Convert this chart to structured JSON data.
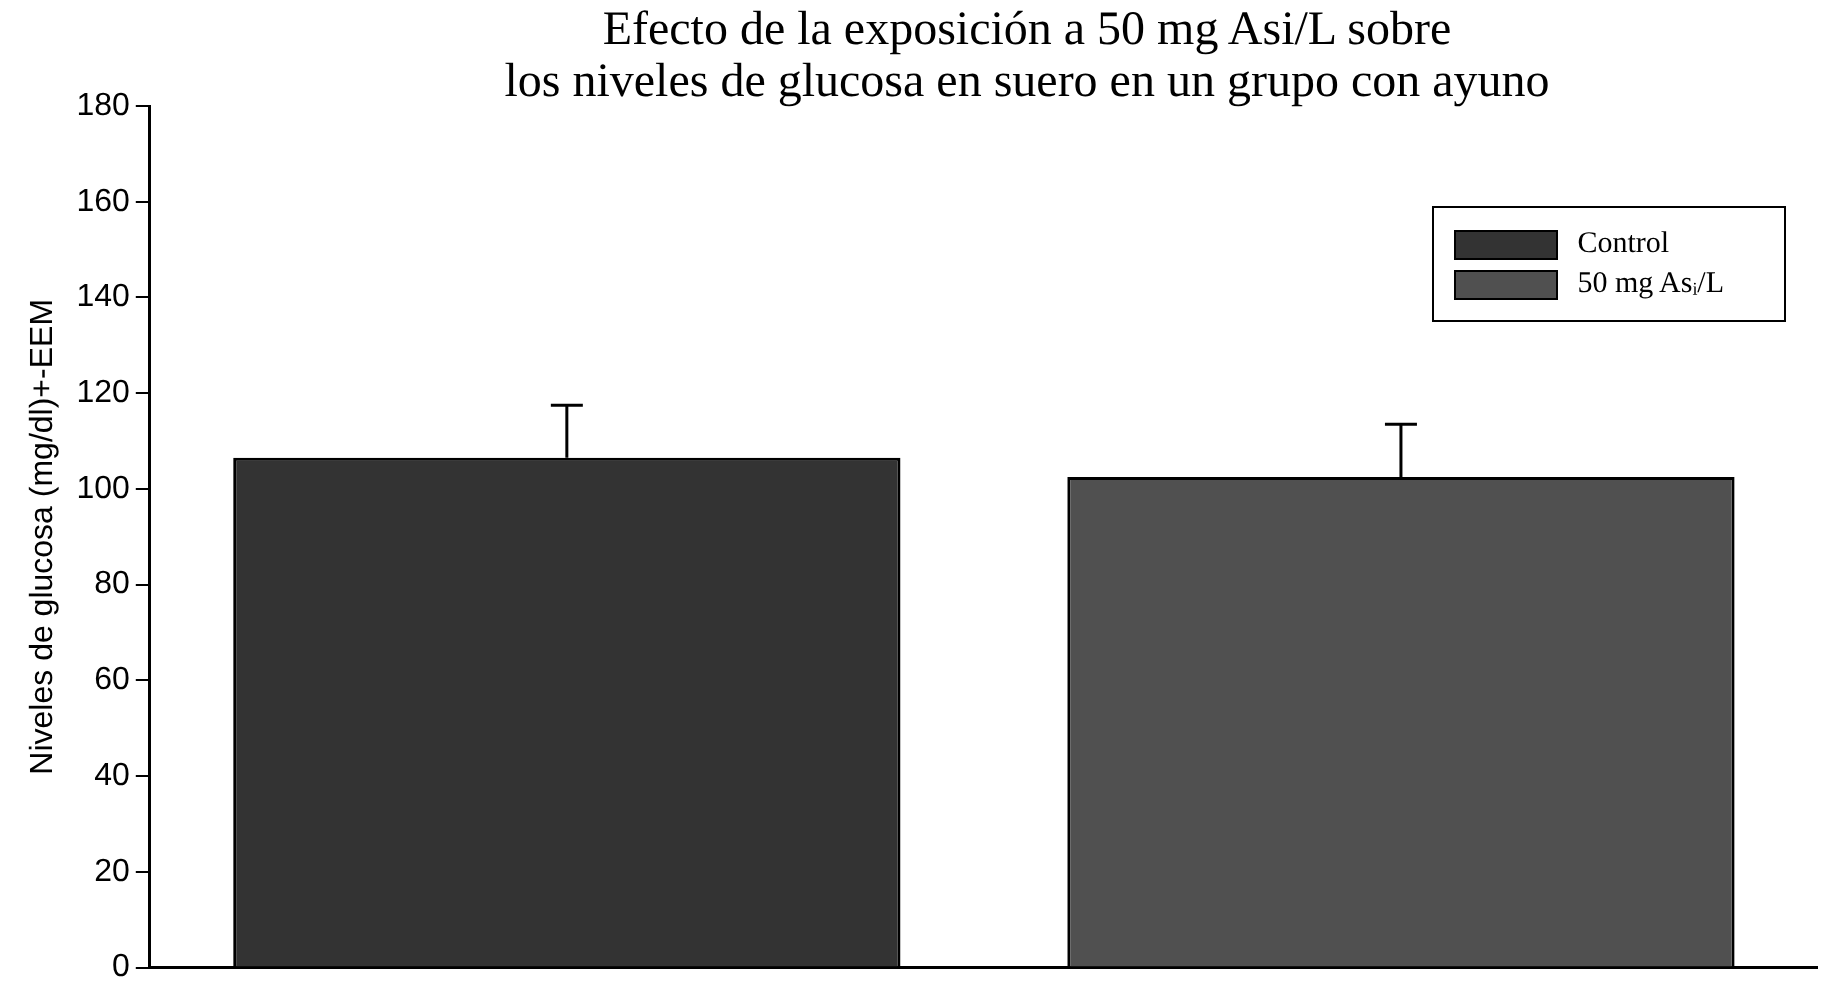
{
  "chart_data": {
    "type": "bar",
    "title": "Efecto de la exposición a 50 mg Asi/L sobre\nlos niveles de glucosa en suero en un grupo con ayuno",
    "ylabel": "Niveles de glucosa (mg/dl)+-EEM",
    "categories": [
      null,
      null
    ],
    "series": [
      {
        "name": "Control",
        "color": "#333333",
        "values": [
          106.5,
          null
        ],
        "errors": [
          [
            106.5,
            117.5
          ],
          null
        ]
      },
      {
        "name": "50 mg Asᵢ/L",
        "color": "#505050",
        "values": [
          null,
          102.5
        ],
        "errors": [
          null,
          [
            102.5,
            113.5
          ]
        ]
      }
    ],
    "ylim": [
      0,
      180
    ],
    "yticks": [
      0,
      20,
      40,
      60,
      80,
      100,
      120,
      140,
      160,
      180
    ],
    "grid": false,
    "legend": "top right"
  }
}
